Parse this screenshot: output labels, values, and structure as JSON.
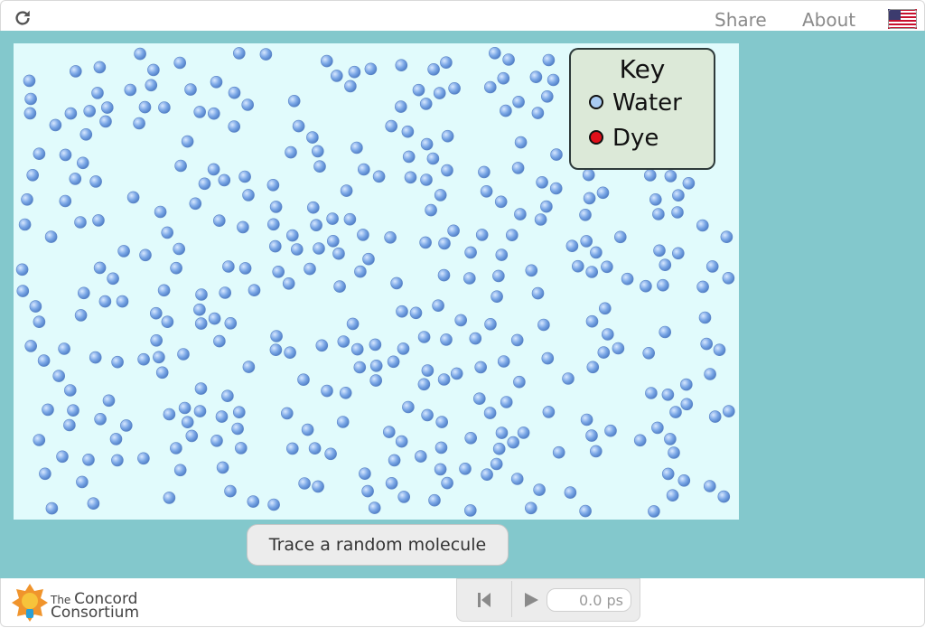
{
  "topbar": {
    "share_label": "Share",
    "about_label": "About"
  },
  "key": {
    "title": "Key",
    "items": [
      {
        "label": "Water",
        "color": "#a9cbf2"
      },
      {
        "label": "Dye",
        "color": "#e0101a"
      }
    ]
  },
  "trace_button": "Trace a random molecule",
  "time_display": "0.0 ps",
  "logo": {
    "line1": "The",
    "line1b": "Concord",
    "line2": "Consortium"
  },
  "colors": {
    "stage": "#83c8cc",
    "sim_bg": "#e1fbfc",
    "molecule": "#6f9fe0"
  }
}
